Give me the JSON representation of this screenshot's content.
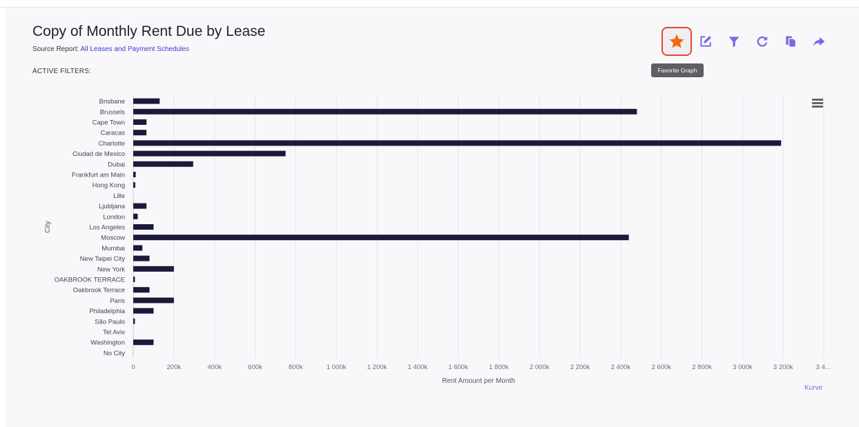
{
  "header": {
    "title": "Copy of Monthly Rent Due by Lease",
    "source_label": "Source Report:",
    "source_link": "All Leases and Payment Schedules",
    "active_filters": "ACTIVE FILTERS:"
  },
  "toolbar": {
    "tooltip": "Favorite Graph",
    "icons": [
      "star-icon",
      "edit-icon",
      "filter-icon",
      "refresh-icon",
      "copy-icon",
      "share-icon"
    ]
  },
  "colors": {
    "bar": "#1b1a3a",
    "accent": "#7a6be0",
    "favorite": "#f26a0d",
    "highlight_border": "#e8452e"
  },
  "credit": "Kurve",
  "chart_data": {
    "type": "bar",
    "orientation": "horizontal",
    "xlabel": "Rent Amount per Month",
    "ylabel": "City",
    "xlim": [
      0,
      3400000
    ],
    "grid": true,
    "x_ticks": [
      0,
      200000,
      400000,
      600000,
      800000,
      1000000,
      1200000,
      1400000,
      1600000,
      1800000,
      2000000,
      2200000,
      2400000,
      2600000,
      2800000,
      3000000,
      3200000,
      3400000
    ],
    "x_tick_labels": [
      "0",
      "200k",
      "400k",
      "600k",
      "800k",
      "1 000k",
      "1 200k",
      "1 400k",
      "1 600k",
      "1 800k",
      "2 000k",
      "2 200k",
      "2 400k",
      "2 600k",
      "2 800k",
      "3 000k",
      "3 200k",
      "3 4…"
    ],
    "categories": [
      "Brisbane",
      "Brussels",
      "Cape Town",
      "Caracas",
      "Charlotte",
      "Ciudad de Mexico",
      "Dubai",
      "Frankfurt am Main",
      "Hong Kong",
      "Lille",
      "Ljubljana",
      "London",
      "Los Angeles",
      "Moscow",
      "Mumbai",
      "New Taipei City",
      "New York",
      "OAKBROOK TERRACE",
      "Oakbrook Terrace",
      "Paris",
      "Philadelphia",
      "São Paulo",
      "Tel Aviv",
      "Washington",
      "No City"
    ],
    "values": [
      130000,
      2480000,
      65000,
      65000,
      3190000,
      750000,
      295000,
      12000,
      10000,
      0,
      65000,
      22000,
      100000,
      2440000,
      45000,
      80000,
      200000,
      8000,
      80000,
      200000,
      100000,
      8000,
      0,
      100000,
      0
    ]
  }
}
